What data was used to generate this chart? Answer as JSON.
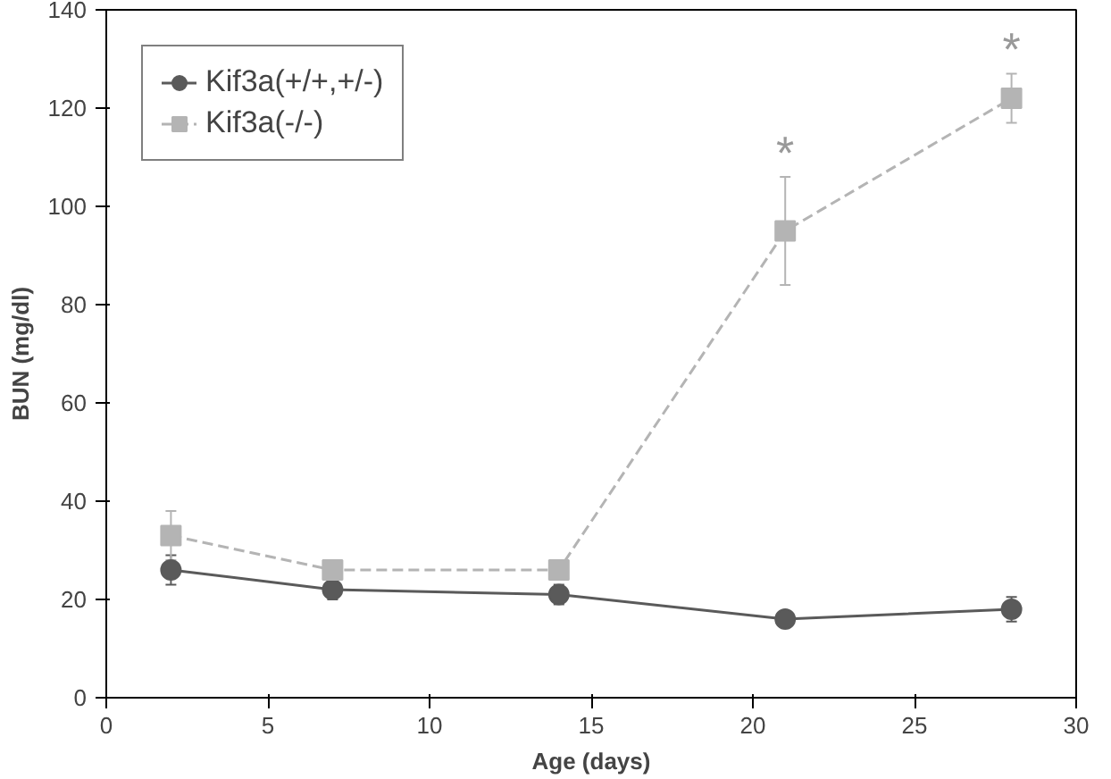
{
  "chart_data": {
    "type": "line",
    "xlabel": "Age (days)",
    "ylabel": "BUN (mg/dl)",
    "x": [
      2,
      7,
      14,
      21,
      28
    ],
    "series": [
      {
        "name": "Kif3a(+/+,+/-)",
        "color": "#5a5a5a",
        "values": [
          26,
          22,
          21,
          16,
          18
        ],
        "errors": [
          3,
          2,
          2,
          1,
          2.5
        ],
        "marker": "circle",
        "line_style": "solid"
      },
      {
        "name": "Kif3a(-/-)",
        "color": "#b4b4b4",
        "values": [
          33,
          26,
          26,
          95,
          122
        ],
        "errors": [
          5,
          1,
          2,
          11,
          5
        ],
        "marker": "square",
        "line_style": "dashed"
      }
    ],
    "annotations": [
      {
        "text": "*",
        "x": 21,
        "y": 95
      },
      {
        "text": "*",
        "x": 28,
        "y": 122
      }
    ],
    "xlim": [
      0,
      30
    ],
    "xticks": [
      0,
      5,
      10,
      15,
      20,
      25,
      30
    ],
    "ylim": [
      0,
      140
    ],
    "yticks": [
      0,
      20,
      40,
      60,
      80,
      100,
      120,
      140
    ],
    "grid": false,
    "legend": "top left"
  }
}
